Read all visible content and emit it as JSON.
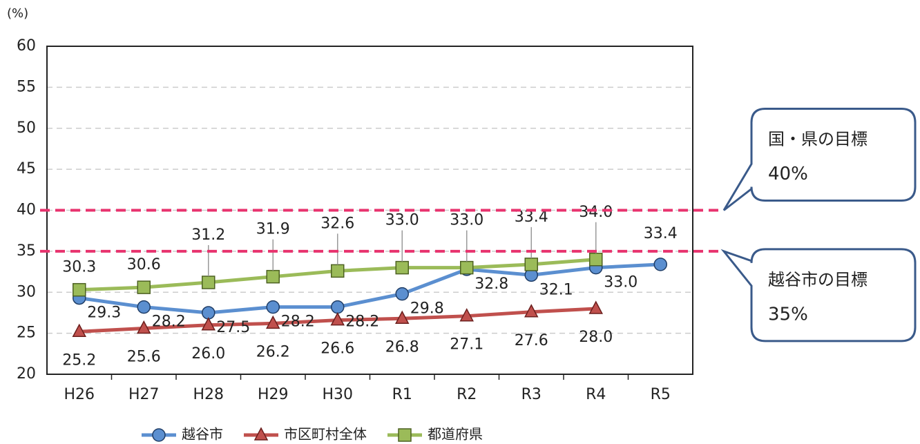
{
  "chart_data": {
    "type": "line",
    "y_label": "(%)",
    "categories": [
      "H26",
      "H27",
      "H28",
      "H29",
      "H30",
      "R1",
      "R2",
      "R3",
      "R4",
      "R5"
    ],
    "series": [
      {
        "name": "越谷市",
        "color": "#5b8fd0",
        "marker": "circle",
        "values": [
          29.3,
          28.2,
          27.5,
          28.2,
          28.2,
          29.8,
          32.8,
          32.1,
          33.0,
          33.4
        ],
        "value_labels": [
          "29.3",
          "28.2",
          "27.5",
          "28.2",
          "28.2",
          "29.8",
          "32.8",
          "32.1",
          "33.0",
          "33.4"
        ]
      },
      {
        "name": "市区町村全体",
        "color": "#c0504d",
        "marker": "triangle",
        "values": [
          25.2,
          25.6,
          26.0,
          26.2,
          26.6,
          26.8,
          27.1,
          27.6,
          28.0,
          null
        ],
        "value_labels": [
          "25.2",
          "25.6",
          "26.0",
          "26.2",
          "26.6",
          "26.8",
          "27.1",
          "27.6",
          "28.0",
          null
        ]
      },
      {
        "name": "都道府県",
        "color": "#9bbb59",
        "marker": "square",
        "values": [
          30.3,
          30.6,
          31.2,
          31.9,
          32.6,
          33.0,
          33.0,
          33.4,
          34.0,
          null
        ],
        "value_labels": [
          "30.3",
          "30.6",
          "31.2",
          "31.9",
          "32.6",
          "33.0",
          "33.0",
          "33.4",
          "34.0",
          null
        ]
      }
    ],
    "ylim": [
      20,
      60
    ],
    "yticks": [
      20,
      25,
      30,
      35,
      40,
      45,
      50,
      55,
      60
    ],
    "grid": true,
    "annotations": [
      {
        "label": "国・県の目標",
        "value": 40,
        "value_label": "40%",
        "color": "#e8336e"
      },
      {
        "label": "越谷市の目標",
        "value": 35,
        "value_label": "35%",
        "color": "#e8336e"
      }
    ]
  }
}
